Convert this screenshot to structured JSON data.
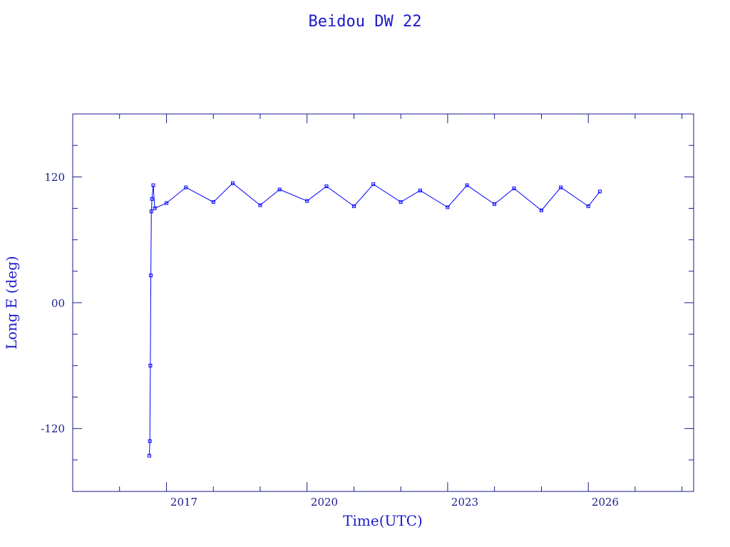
{
  "chart_data": {
    "type": "line",
    "title": "Beidou DW 22",
    "xlabel": "Time(UTC)",
    "ylabel": "Long E (deg)",
    "x_ticks": [
      "2017",
      "2020",
      "2023",
      "2026"
    ],
    "y_ticks": [
      "120",
      "00",
      "-120"
    ],
    "xlim": [
      "2015-01-01",
      "2028-04-01"
    ],
    "ylim": [
      -180,
      180
    ],
    "series_color": "#0000ff",
    "frame_color": "#1a1a8c",
    "series": [
      {
        "x": [
          "2016-08-20",
          "2016-08-24",
          "2016-08-28",
          "2016-09-01",
          "2016-09-05",
          "2016-09-10",
          "2016-09-20",
          "2016-10-01",
          "2017-01-01",
          "2017-06-01",
          "2018-01-01",
          "2018-06-01",
          "2019-01-01",
          "2019-06-01",
          "2020-01-01",
          "2020-06-01",
          "2021-01-01",
          "2021-06-01",
          "2022-01-01",
          "2022-06-01",
          "2023-01-01",
          "2023-06-01",
          "2024-01-01",
          "2024-06-01",
          "2025-01-01",
          "2025-06-01",
          "2026-01-01",
          "2026-04-01"
        ],
        "y": [
          -146,
          -132,
          -60,
          26,
          87,
          99,
          112,
          90,
          95,
          110,
          96,
          114,
          93,
          108,
          97,
          111,
          92,
          113,
          96,
          107,
          91,
          112,
          94,
          109,
          88,
          110,
          92,
          106
        ]
      }
    ]
  }
}
